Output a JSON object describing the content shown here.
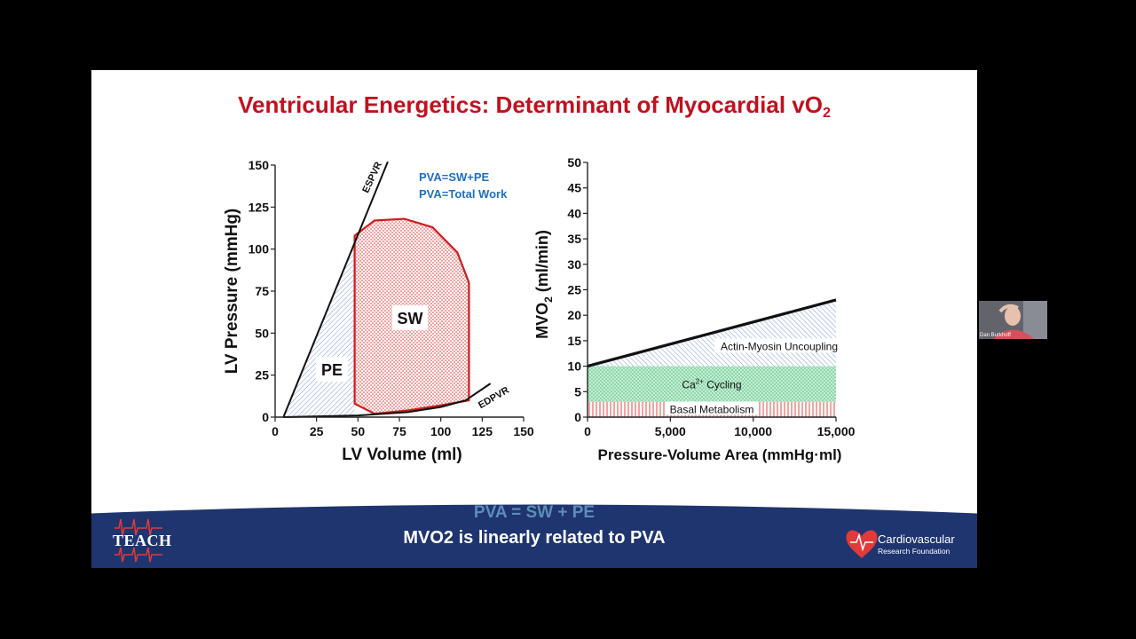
{
  "slide": {
    "title": "Ventricular Energetics:  Determinant of Myocardial vO",
    "title_subscript": "2",
    "footer_line1": "PVA = SW + PE",
    "footer_line2": "MVO2 is linearly related to PVA",
    "logo_left": "TEACH",
    "logo_right_name": "Cardiovascular",
    "logo_right_sub": "Research Foundation",
    "colors": {
      "title": "#c0111f",
      "footer_band": "#1f3570",
      "annotation_blue": "#1f6fc0"
    }
  },
  "webcam": {
    "name": "Dan Burkhoff"
  },
  "chart_data": [
    {
      "type": "line",
      "title": "",
      "xlabel": "LV Volume (ml)",
      "ylabel": "LV Pressure (mmHg)",
      "xlim": [
        0,
        150
      ],
      "ylim": [
        0,
        150
      ],
      "xticks": [
        "0",
        "25",
        "50",
        "75",
        "100",
        "125",
        "150"
      ],
      "yticks": [
        "0",
        "25",
        "50",
        "75",
        "100",
        "125",
        "150"
      ],
      "annotations": [
        "PVA=SW+PE",
        "PVA=Total Work"
      ],
      "region_labels": [
        "SW",
        "PE"
      ],
      "series": [
        {
          "name": "ESPVR",
          "x": [
            5,
            68
          ],
          "y": [
            0,
            152
          ]
        },
        {
          "name": "EDPVR",
          "x": [
            5,
            50,
            80,
            100,
            115,
            130
          ],
          "y": [
            0,
            1,
            3,
            6,
            10,
            20
          ]
        },
        {
          "name": "",
          "x": [
            48,
            48,
            60,
            78,
            95,
            110,
            117,
            117,
            100,
            80,
            60,
            48
          ],
          "y": [
            8,
            108,
            117,
            118,
            113,
            98,
            80,
            10,
            7,
            4,
            2,
            8
          ]
        }
      ]
    },
    {
      "type": "area",
      "title": "",
      "xlabel": "Pressure-Volume Area (mmHg·ml)",
      "ylabel": "MVO",
      "ylabel_sub": "2",
      "ylabel_unit": " (ml/min)",
      "xlim": [
        0,
        15000
      ],
      "ylim": [
        0,
        50
      ],
      "xticks": [
        "0",
        "5,000",
        "10,000",
        "15,000"
      ],
      "yticks": [
        "0",
        "5",
        "10",
        "15",
        "20",
        "25",
        "30",
        "35",
        "40",
        "45",
        "50"
      ],
      "line": {
        "x": [
          0,
          15000
        ],
        "y": [
          10,
          23
        ]
      },
      "bands": [
        {
          "name": "Basal Metabolism",
          "from": 0,
          "to": 3
        },
        {
          "name": "Ca",
          "sup": "2+",
          "suffix": " Cycling",
          "from": 3,
          "to": 10
        },
        {
          "name": "Actin-Myosin Uncoupling",
          "from": 10,
          "to": "line"
        }
      ]
    }
  ]
}
